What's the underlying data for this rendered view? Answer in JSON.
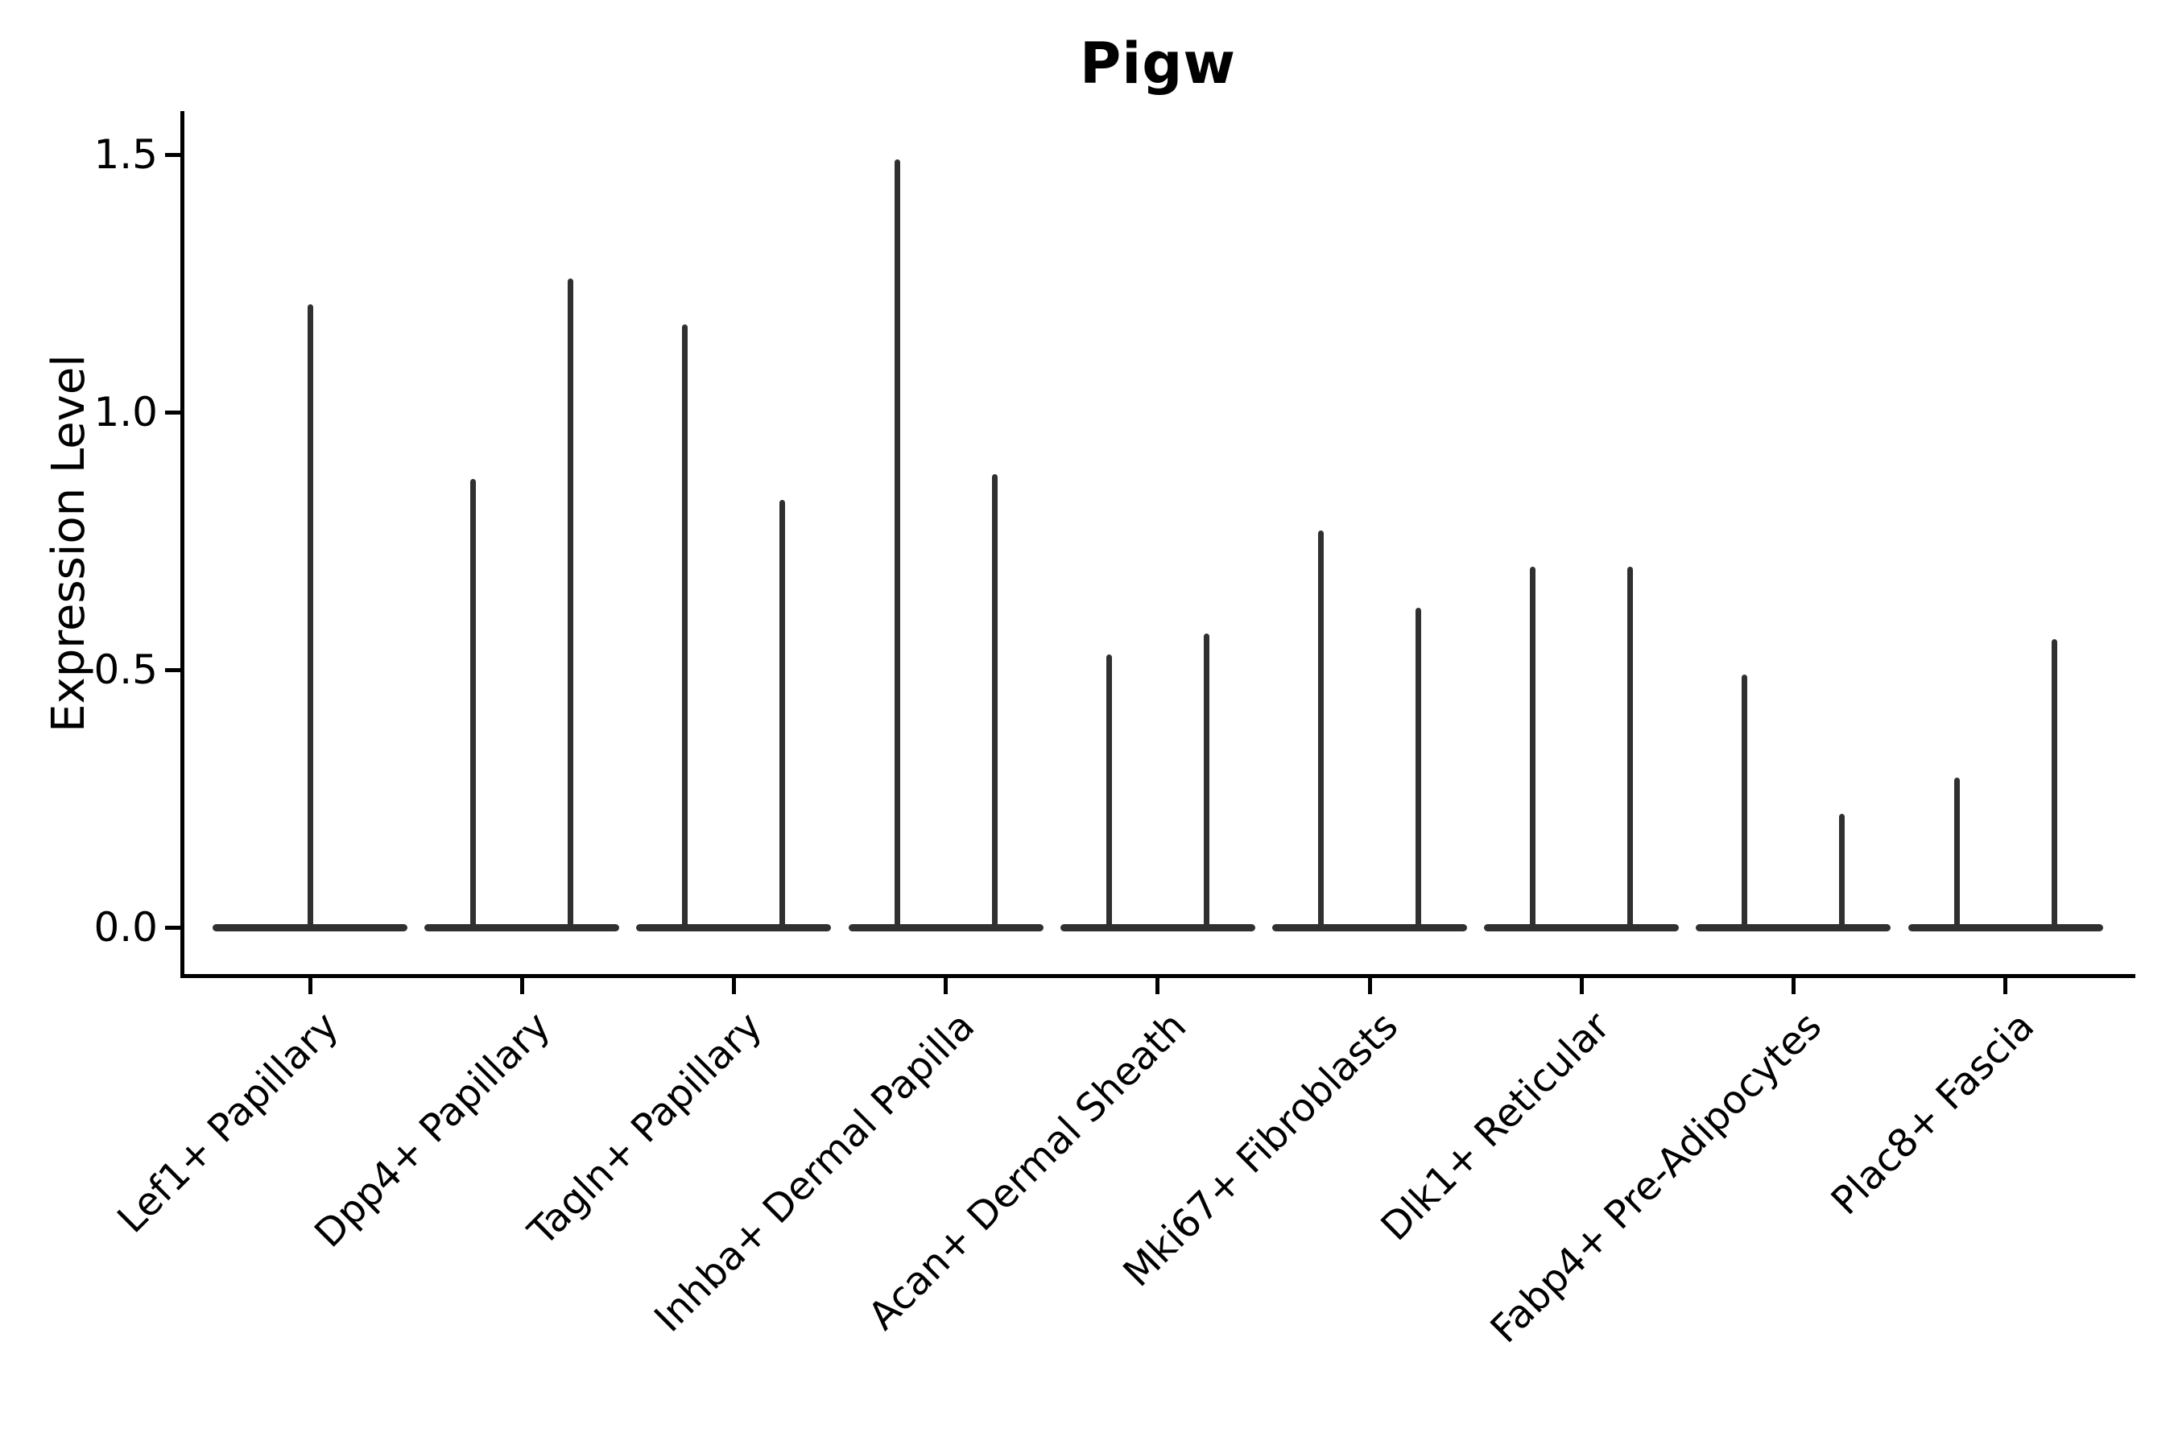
{
  "title": "Pigw",
  "y_axis": {
    "label": "Expression Level",
    "tick_labels": [
      "0.0",
      "0.5",
      "1.0",
      "1.5"
    ],
    "tick_values": [
      0.0,
      0.5,
      1.0,
      1.5
    ]
  },
  "colors": {
    "violin": "#303030",
    "axis": "#000000",
    "background": "#ffffff",
    "text": "#000000"
  },
  "chart_data": {
    "type": "violin",
    "title": "Pigw",
    "xlabel": "",
    "ylabel": "Expression Level",
    "ylim": [
      0,
      1.5
    ],
    "y_ticks": [
      0.0,
      0.5,
      1.0,
      1.5
    ],
    "grid": false,
    "legend_position": "none",
    "x_tick_rotation_deg": 45,
    "description": "Violin plot of gene expression; each violin is collapsed flat at 0 with thin vertical spike(s) rising to the maximum expression value. The first category shows one centered spike; all other categories show two spikes per category.",
    "categories": [
      "Lef1+ Papillary",
      "Dpp4+ Papillary",
      "Tagln+ Papillary",
      "Inhba+ Dermal Papilla",
      "Acan+ Dermal Sheath",
      "Mki67+ Fibroblasts",
      "Dlk1+ Reticular",
      "Fabp4+ Pre-Adipocytes",
      "Plac8+ Fascia"
    ],
    "spike_max_values": [
      [
        1.21
      ],
      [
        0.87,
        1.26
      ],
      [
        1.17,
        0.83
      ],
      [
        1.49,
        0.88
      ],
      [
        0.53,
        0.57
      ],
      [
        0.77,
        0.62
      ],
      [
        0.7,
        0.7
      ],
      [
        0.49,
        0.22
      ],
      [
        0.29,
        0.56
      ]
    ],
    "baseline_value": 0.0
  }
}
